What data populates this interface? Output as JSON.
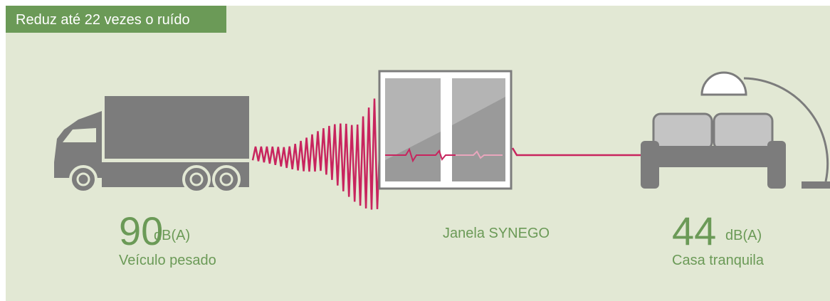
{
  "header": {
    "title": "Reduz até 22 vezes o ruído"
  },
  "source": {
    "level": 90,
    "unit": "dB(A)",
    "label": "Veículo pesado"
  },
  "barrier": {
    "label": "Janela SYNEGO"
  },
  "destination": {
    "level": 44,
    "unit": "dB(A)",
    "label": "Casa tranquila"
  }
}
